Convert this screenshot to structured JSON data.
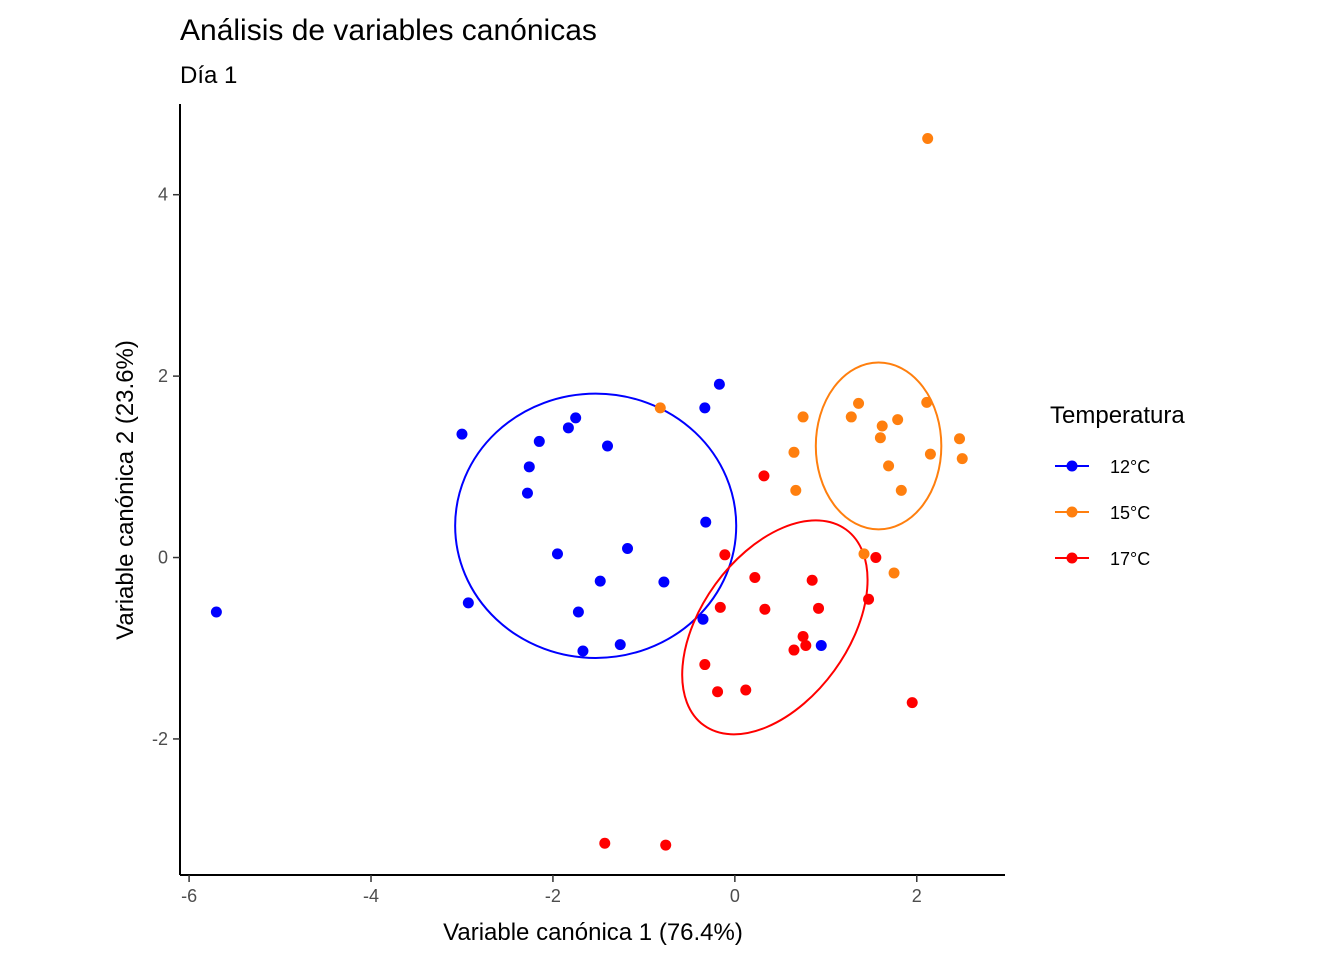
{
  "chart_data": {
    "type": "scatter",
    "title": "Análisis de variables canónicas",
    "subtitle": "Día 1",
    "xlabel": "Variable canónica 1 (76.4%)",
    "ylabel": "Variable canónica 2 (23.6%)",
    "xlim": [
      -6.1,
      2.97
    ],
    "ylim": [
      -3.5,
      5.0
    ],
    "xticks": [
      -6,
      -4,
      -2,
      0,
      2
    ],
    "yticks": [
      -2,
      0,
      2,
      4
    ],
    "grid": false,
    "legend": {
      "title": "Temperatura",
      "placement": "right"
    },
    "series": [
      {
        "name": "12°C",
        "color": "#0000ff",
        "points": [
          [
            -5.7,
            -0.6
          ],
          [
            -3.0,
            1.36
          ],
          [
            -2.93,
            -0.5
          ],
          [
            -2.28,
            0.71
          ],
          [
            -2.26,
            1.0
          ],
          [
            -2.15,
            1.28
          ],
          [
            -1.95,
            0.04
          ],
          [
            -1.83,
            1.43
          ],
          [
            -1.75,
            1.54
          ],
          [
            -1.72,
            -0.6
          ],
          [
            -1.67,
            -1.03
          ],
          [
            -1.48,
            -0.26
          ],
          [
            -1.4,
            1.23
          ],
          [
            -1.26,
            -0.96
          ],
          [
            -1.18,
            0.1
          ],
          [
            -0.78,
            -0.27
          ],
          [
            -0.35,
            -0.68
          ],
          [
            -0.33,
            1.65
          ],
          [
            -0.32,
            0.39
          ],
          [
            -0.17,
            1.91
          ],
          [
            0.95,
            -0.97
          ]
        ],
        "ellipse": {
          "cx": -1.53,
          "cy": 0.35,
          "rx": 1.545,
          "ry": 1.457,
          "angle": 0
        }
      },
      {
        "name": "15°C",
        "color": "#ff7f0e",
        "points": [
          [
            -0.82,
            1.65
          ],
          [
            0.65,
            1.16
          ],
          [
            0.67,
            0.74
          ],
          [
            0.75,
            1.55
          ],
          [
            1.28,
            1.55
          ],
          [
            1.36,
            1.7
          ],
          [
            1.42,
            0.04
          ],
          [
            1.6,
            1.32
          ],
          [
            1.62,
            1.45
          ],
          [
            1.69,
            1.01
          ],
          [
            1.75,
            -0.17
          ],
          [
            1.79,
            1.52
          ],
          [
            1.83,
            0.74
          ],
          [
            2.11,
            1.71
          ],
          [
            2.15,
            1.14
          ],
          [
            2.12,
            4.62
          ],
          [
            2.47,
            1.31
          ],
          [
            2.5,
            1.09
          ]
        ],
        "ellipse": {
          "cx": 1.58,
          "cy": 1.23,
          "rx": 0.69,
          "ry": 0.92,
          "angle": 0
        }
      },
      {
        "name": "17°C",
        "color": "#ff0000",
        "points": [
          [
            -1.43,
            -3.15
          ],
          [
            -0.76,
            -3.17
          ],
          [
            -0.33,
            -1.18
          ],
          [
            -0.19,
            -1.48
          ],
          [
            -0.16,
            -0.55
          ],
          [
            -0.11,
            0.03
          ],
          [
            0.12,
            -1.46
          ],
          [
            0.22,
            -0.22
          ],
          [
            0.32,
            0.9
          ],
          [
            0.33,
            -0.57
          ],
          [
            0.65,
            -1.02
          ],
          [
            0.75,
            -0.87
          ],
          [
            0.78,
            -0.97
          ],
          [
            0.85,
            -0.25
          ],
          [
            0.92,
            -0.56
          ],
          [
            1.47,
            -0.46
          ],
          [
            1.55,
            0.0
          ],
          [
            1.95,
            -1.6
          ]
        ],
        "ellipse": {
          "cx": 0.44,
          "cy": -0.77,
          "rx": 1.33,
          "ry": 0.81,
          "angle": -54
        }
      }
    ]
  }
}
